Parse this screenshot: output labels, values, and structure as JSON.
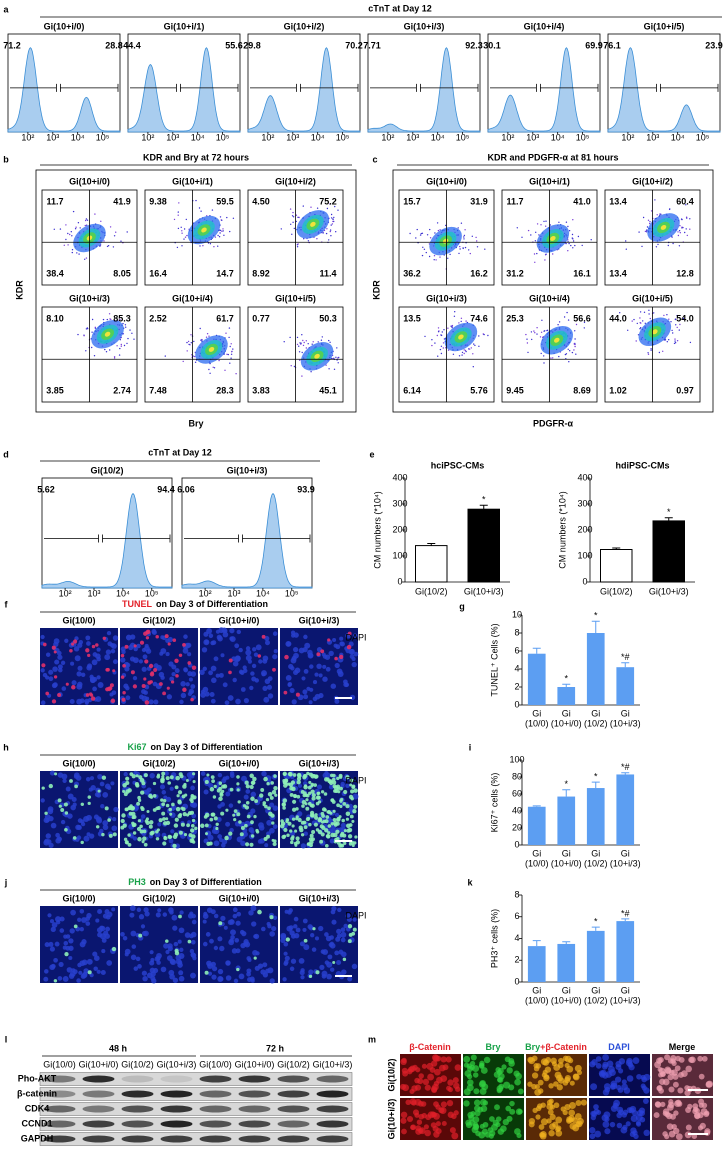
{
  "figure": {
    "a": {
      "label": "a",
      "title": "cTnT at Day 12",
      "x_ticks": [
        "10²",
        "10³",
        "10⁴",
        "10⁵"
      ],
      "plots": [
        {
          "name": "Gi(10+i/0)",
          "left": "71.2",
          "right": "28.8"
        },
        {
          "name": "Gi(10+i/1)",
          "left": "44.4",
          "right": "55.6"
        },
        {
          "name": "Gi(10+i/2)",
          "left": "29.8",
          "right": "70.2"
        },
        {
          "name": "Gi(10+i/3)",
          "left": "7.71",
          "right": "92.3"
        },
        {
          "name": "Gi(10+i/4)",
          "left": "30.1",
          "right": "69.9"
        },
        {
          "name": "Gi(10+i/5)",
          "left": "76.1",
          "right": "23.9"
        }
      ]
    },
    "b": {
      "label": "b",
      "title": "KDR and Bry at 72 hours",
      "y_label": "KDR",
      "x_label": "Bry",
      "plots": [
        {
          "name": "Gi(10+i/0)",
          "q": [
            "11.7",
            "41.9",
            "38.4",
            "8.05"
          ]
        },
        {
          "name": "Gi(10+i/1)",
          "q": [
            "9.38",
            "59.5",
            "16.4",
            "14.7"
          ]
        },
        {
          "name": "Gi(10+i/2)",
          "q": [
            "4.50",
            "75.2",
            "8.92",
            "11.4"
          ]
        },
        {
          "name": "Gi(10+i/3)",
          "q": [
            "8.10",
            "85.3",
            "3.85",
            "2.74"
          ]
        },
        {
          "name": "Gi(10+i/4)",
          "q": [
            "2.52",
            "61.7",
            "7.48",
            "28.3"
          ]
        },
        {
          "name": "Gi(10+i/5)",
          "q": [
            "0.77",
            "50.3",
            "3.83",
            "45.1"
          ]
        }
      ]
    },
    "c": {
      "label": "c",
      "title": "KDR and PDGFR-α at 81 hours",
      "y_label": "KDR",
      "x_label": "PDGFR-α",
      "plots": [
        {
          "name": "Gi(10+i/0)",
          "q": [
            "15.7",
            "31.9",
            "36.2",
            "16.2"
          ]
        },
        {
          "name": "Gi(10+i/1)",
          "q": [
            "11.7",
            "41.0",
            "31.2",
            "16.1"
          ]
        },
        {
          "name": "Gi(10+i/2)",
          "q": [
            "13.4",
            "60.4",
            "13.4",
            "12.8"
          ]
        },
        {
          "name": "Gi(10+i/3)",
          "q": [
            "13.5",
            "74.6",
            "6.14",
            "5.76"
          ]
        },
        {
          "name": "Gi(10+i/4)",
          "q": [
            "25.3",
            "56.6",
            "9.45",
            "8.69"
          ]
        },
        {
          "name": "Gi(10+i/5)",
          "q": [
            "44.0",
            "54.0",
            "1.02",
            "0.97"
          ]
        }
      ]
    },
    "d": {
      "label": "d",
      "title": "cTnT at Day 12",
      "x_ticks": [
        "10²",
        "10³",
        "10⁴",
        "10⁵"
      ],
      "plots": [
        {
          "name": "Gi(10/2)",
          "left": "5.62",
          "right": "94.4"
        },
        {
          "name": "Gi(10+i/3)",
          "left": "6.06",
          "right": "93.9"
        }
      ]
    },
    "e": {
      "label": "e"
    },
    "f": {
      "label": "f",
      "stain": "TUNEL",
      "stain_color": "#e3232b",
      "rest": "on Day 3 of Differentiation",
      "channel": "DAPI",
      "images": [
        "Gi(10/0)",
        "Gi(10/2)",
        "Gi(10+i/0)",
        "Gi(10+i/3)"
      ]
    },
    "g": {
      "label": "g"
    },
    "h": {
      "label": "h",
      "stain": "Ki67",
      "stain_color": "#19a24a",
      "rest": "on Day 3 of Differentiation",
      "channel": "DAPI",
      "images": [
        "Gi(10/0)",
        "Gi(10/2)",
        "Gi(10+i/0)",
        "Gi(10+i/3)"
      ]
    },
    "i": {
      "label": "i"
    },
    "j": {
      "label": "j",
      "stain": "PH3",
      "stain_color": "#19a24a",
      "rest": "on Day 3 of Differentiation",
      "channel": "DAPI",
      "images": [
        "Gi(10/0)",
        "Gi(10/2)",
        "Gi(10+i/0)",
        "Gi(10+i/3)"
      ]
    },
    "k": {
      "label": "k"
    },
    "l": {
      "label": "l",
      "groups": [
        "48 h",
        "72 h"
      ],
      "lanes": [
        "Gi(10/0)",
        "Gi(10+i/0)",
        "Gi(10/2)",
        "Gi(10+i/3)",
        "Gi(10/0)",
        "Gi(10+i/0)",
        "Gi(10/2)",
        "Gi(10+i/3)"
      ],
      "rows": [
        "Pho-AKT",
        "β-catenin",
        "CDK4",
        "CCND1",
        "GAPDH"
      ]
    },
    "m": {
      "label": "m",
      "columns": [
        {
          "parts": [
            {
              "text": "β-Catenin",
              "color": "#e3232b"
            }
          ]
        },
        {
          "parts": [
            {
              "text": "Bry",
              "color": "#19a24a"
            }
          ]
        },
        {
          "parts": [
            {
              "text": "Bry",
              "color": "#19a24a"
            },
            {
              "text": "+β-Catenin",
              "color": "#e3232b"
            }
          ]
        },
        {
          "parts": [
            {
              "text": "DAPI",
              "color": "#2a4fd8"
            }
          ]
        },
        {
          "parts": [
            {
              "text": "Merge",
              "color": "#000000"
            }
          ]
        }
      ],
      "rows": [
        "Gi(10/2)",
        "Gi(10+i/3)"
      ]
    }
  },
  "chart_data": [
    {
      "type": "bar",
      "title": "hciPSC-CMs",
      "y_label": "CM numbers (*10⁴)",
      "categories": [
        "Gi(10/2)",
        "Gi(10+i/3)"
      ],
      "values": [
        140,
        280
      ],
      "errors": [
        8,
        15
      ],
      "annotations": [
        null,
        "*"
      ],
      "colors": [
        "#ffffff",
        "#000000"
      ],
      "stroke": "#000000",
      "ylim": [
        0,
        400
      ],
      "yticks": [
        0,
        100,
        200,
        300,
        400
      ]
    },
    {
      "type": "bar",
      "title": "hdiPSC-CMs",
      "y_label": "CM numbers (*10⁴)",
      "categories": [
        "Gi(10/2)",
        "Gi(10+i/3)"
      ],
      "values": [
        125,
        235
      ],
      "errors": [
        6,
        12
      ],
      "annotations": [
        null,
        "*"
      ],
      "colors": [
        "#ffffff",
        "#000000"
      ],
      "stroke": "#000000",
      "ylim": [
        0,
        400
      ],
      "yticks": [
        0,
        100,
        200,
        300,
        400
      ]
    },
    {
      "type": "bar",
      "y_label": "TUNEL⁺ Cells (%)",
      "categories": [
        [
          "Gi",
          "(10/0)"
        ],
        [
          "Gi",
          "(10+i/0)"
        ],
        [
          "Gi",
          "(10/2)"
        ],
        [
          "Gi",
          "(10+i/3)"
        ]
      ],
      "values": [
        5.7,
        2.0,
        8.0,
        4.2
      ],
      "errors": [
        0.6,
        0.3,
        1.3,
        0.5
      ],
      "annotations": [
        null,
        "*",
        "*",
        "*#"
      ],
      "color": "#5c9ef2",
      "ylim": [
        0,
        10
      ],
      "yticks": [
        0,
        2,
        4,
        6,
        8,
        10
      ]
    },
    {
      "type": "bar",
      "y_label": "Ki67⁺ cells (%)",
      "categories": [
        [
          "Gi",
          "(10/0)"
        ],
        [
          "Gi",
          "(10+i/0)"
        ],
        [
          "Gi",
          "(10/2)"
        ],
        [
          "Gi",
          "(10+i/3)"
        ]
      ],
      "values": [
        45,
        57,
        67,
        83
      ],
      "errors": [
        1,
        8,
        7,
        2
      ],
      "annotations": [
        null,
        "*",
        "*",
        "*#"
      ],
      "color": "#5c9ef2",
      "ylim": [
        0,
        100
      ],
      "yticks": [
        0,
        20,
        40,
        60,
        80,
        100
      ]
    },
    {
      "type": "bar",
      "y_label": "PH3⁺ cells (%)",
      "categories": [
        [
          "Gi",
          "(10/0)"
        ],
        [
          "Gi",
          "(10+i/0)"
        ],
        [
          "Gi",
          "(10/2)"
        ],
        [
          "Gi",
          "(10+i/3)"
        ]
      ],
      "values": [
        3.3,
        3.5,
        4.7,
        5.6
      ],
      "errors": [
        0.5,
        0.2,
        0.35,
        0.2
      ],
      "annotations": [
        null,
        null,
        "*",
        "*#"
      ],
      "color": "#5c9ef2",
      "ylim": [
        0,
        8
      ],
      "yticks": [
        0,
        2,
        4,
        6,
        8
      ]
    }
  ]
}
